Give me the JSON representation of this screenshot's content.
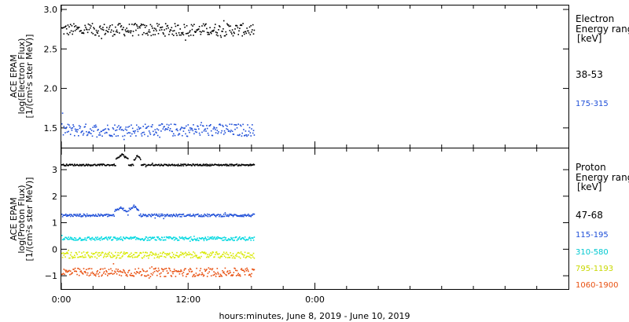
{
  "xaxis": {
    "title": "hours:minutes,  June  8, 2019 - June 10, 2019",
    "range_hours": [
      0,
      48
    ],
    "tick_labels": [
      {
        "hour": 0,
        "label": "0:00"
      },
      {
        "hour": 12,
        "label": "12:00"
      },
      {
        "hour": 24,
        "label": "0:00"
      }
    ],
    "minor_tick_hours": [
      3,
      6,
      9,
      15,
      18,
      21,
      27,
      30,
      33,
      36,
      39,
      42,
      45
    ]
  },
  "chart_data": [
    {
      "type": "scatter",
      "panel": "electron",
      "ylabel_lines": [
        "ACE EPAM",
        "log(Electron Flux)",
        "[1/(cm²s ster MeV)]"
      ],
      "ylim": [
        1.25,
        3.05
      ],
      "yticks": [
        {
          "value": 1.5,
          "label": "1.5"
        },
        {
          "value": 2.0,
          "label": "2.0"
        },
        {
          "value": 2.5,
          "label": "2.5"
        },
        {
          "value": 3.0,
          "label": "3.0"
        }
      ],
      "legend_title": [
        "Electron",
        "Energy ranges"
      ],
      "legend_unit": "[keV]",
      "series": [
        {
          "name": "38-53",
          "color": "#000000",
          "x_start": 0,
          "x_end": 18.2,
          "baseline": 2.75,
          "spread": 0.08,
          "events": []
        },
        {
          "name": "175-315",
          "color": "#1f4fd8",
          "x_start": 0,
          "x_end": 18.2,
          "baseline": 1.48,
          "spread": 0.08,
          "events": []
        }
      ]
    },
    {
      "type": "scatter",
      "panel": "proton",
      "ylabel_lines": [
        "ACE EPAM",
        "log(Proton Flux)",
        "[1/(cm²s ster MeV)]"
      ],
      "ylim": [
        -1.5,
        3.8
      ],
      "yticks": [
        {
          "value": -1,
          "label": "−1"
        },
        {
          "value": 0,
          "label": "0"
        },
        {
          "value": 1,
          "label": "1"
        },
        {
          "value": 2,
          "label": "2"
        },
        {
          "value": 3,
          "label": "3"
        }
      ],
      "legend_title": [
        "Proton",
        "Energy ranges"
      ],
      "legend_unit": "[keV]",
      "series": [
        {
          "name": "47-68",
          "color": "#000000",
          "x_start": 0,
          "x_end": 18.2,
          "baseline": 3.2,
          "spread": 0.03,
          "events": [
            {
              "from": 5.1,
              "to": 6.3,
              "add": 0.4
            },
            {
              "from": 6.8,
              "to": 7.5,
              "add": 0.35
            }
          ]
        },
        {
          "name": "115-195",
          "color": "#1f4fd8",
          "x_start": 0,
          "x_end": 18.2,
          "baseline": 1.3,
          "spread": 0.05,
          "events": [
            {
              "from": 5.0,
              "to": 6.2,
              "add": 0.3
            },
            {
              "from": 6.3,
              "to": 7.3,
              "add": 0.35
            }
          ]
        },
        {
          "name": "310-580",
          "color": "#00d8e0",
          "x_start": 0,
          "x_end": 18.2,
          "baseline": 0.42,
          "spread": 0.07,
          "events": []
        },
        {
          "name": "795-1193",
          "color": "#d8e800",
          "x_start": 0,
          "x_end": 18.2,
          "baseline": -0.2,
          "spread": 0.12,
          "events": []
        },
        {
          "name": "1060-1900",
          "color": "#e85010",
          "x_start": 0,
          "x_end": 18.2,
          "baseline": -0.85,
          "spread": 0.16,
          "events": []
        }
      ]
    }
  ]
}
